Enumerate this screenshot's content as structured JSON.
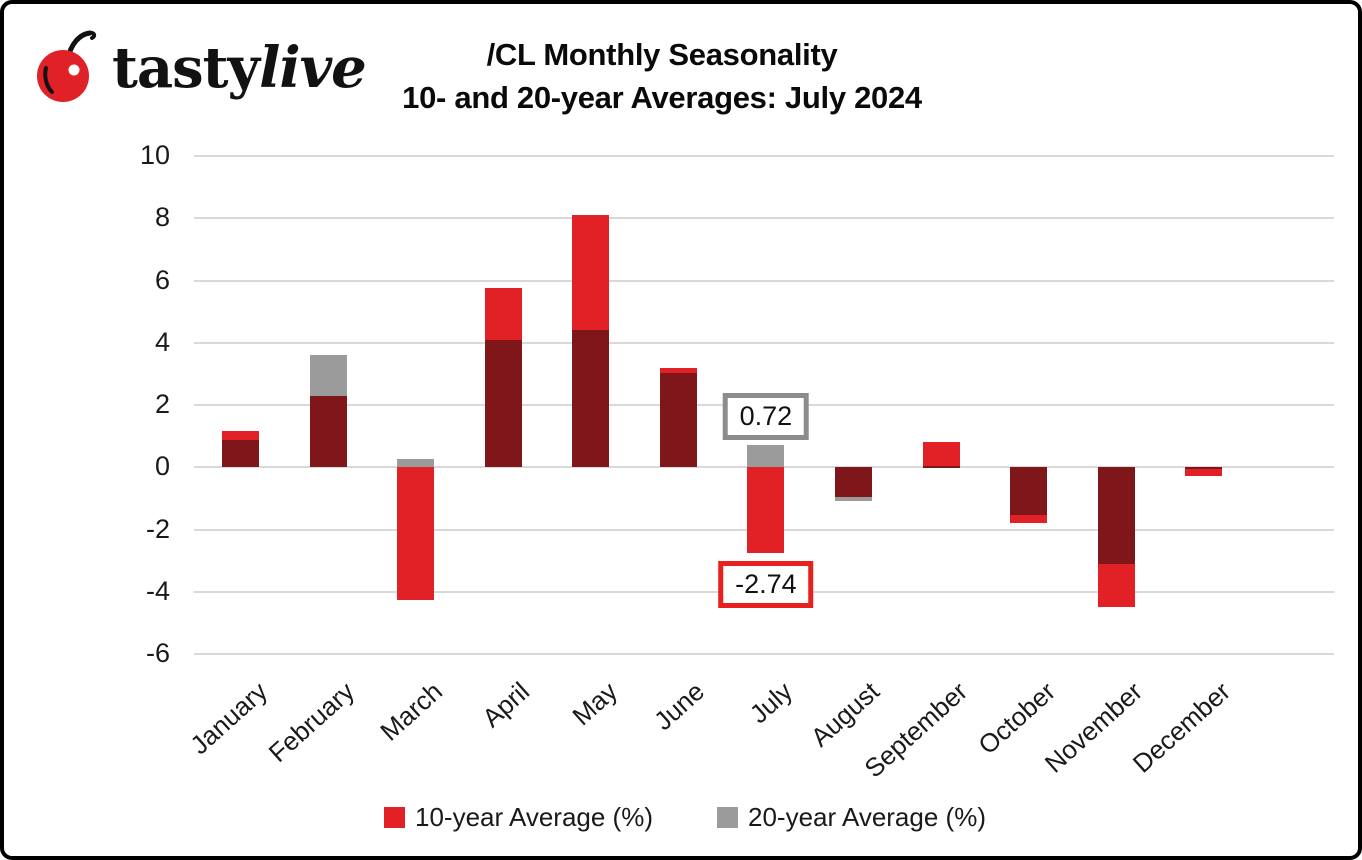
{
  "logo": {
    "brand_first": "tasty",
    "brand_second": "live",
    "cherry_color": "#e02127",
    "icon": "cherry-icon"
  },
  "header": {
    "title_line1": "/CL Monthly Seasonality",
    "title_line2": "10- and 20-year Averages: July 2024"
  },
  "chart_data": {
    "type": "bar",
    "title": "/CL Monthly Seasonality 10- and 20-year Averages: July 2024",
    "categories": [
      "January",
      "February",
      "March",
      "April",
      "May",
      "June",
      "July",
      "August",
      "September",
      "October",
      "November",
      "December"
    ],
    "series": [
      {
        "name": "10-year Average (%)",
        "color": "#e22127",
        "values": [
          1.15,
          2.3,
          -4.28,
          5.77,
          8.1,
          3.2,
          -2.74,
          -0.97,
          0.8,
          -1.8,
          -4.5,
          -0.28
        ]
      },
      {
        "name": "20-year Average (%)",
        "color": "#9b9b9b",
        "values": [
          0.88,
          3.62,
          0.27,
          4.08,
          4.4,
          3.03,
          0.72,
          -1.1,
          0.05,
          -1.53,
          -3.1,
          -0.05
        ]
      }
    ],
    "overlap_color": "#7f171a",
    "xlabel": "",
    "ylabel": "",
    "ylim": [
      -6,
      10
    ],
    "yticks": [
      10,
      8,
      6,
      4,
      2,
      0,
      -2,
      -4,
      -6
    ],
    "grid": true,
    "gridline_color": "#d9d9d9",
    "legend_position": "bottom",
    "annotations": [
      {
        "label": "0.72",
        "month_index": 6,
        "anchor_value": 0.72,
        "placement": "above",
        "border_color": "#8c8c8c"
      },
      {
        "label": "-2.74",
        "month_index": 6,
        "anchor_value": -2.74,
        "placement": "below",
        "border_color": "#e8201e"
      }
    ]
  },
  "legend": {
    "items": [
      {
        "label": "10-year Average (%)",
        "color": "#e22127"
      },
      {
        "label": "20-year Average (%)",
        "color": "#9b9b9b"
      }
    ]
  }
}
